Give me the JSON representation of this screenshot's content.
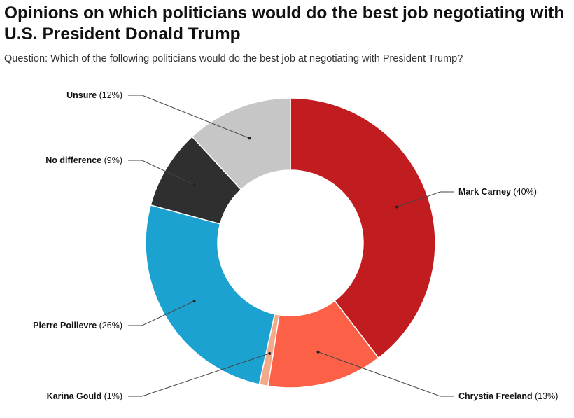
{
  "title": "Opinions on which politicians would do the best job negotiating with U.S. President Donald Trump",
  "subtitle": "Question: Which of the following politicians would do the best job at negotiating with President Trump?",
  "chart_data": {
    "type": "pie",
    "title": "Opinions on which politicians would do the best job negotiating with U.S. President Donald Trump",
    "legend": "none (leader-line labels)",
    "slices": [
      {
        "label": "Mark Carney",
        "value": 40,
        "value_label": "(40%)",
        "color": "#c11c1f"
      },
      {
        "label": "Chrystia Freeland",
        "value": 13,
        "value_label": "(13%)",
        "color": "#fc6147"
      },
      {
        "label": "Karina Gould",
        "value": 1,
        "value_label": "(1%)",
        "color": "#f5a98b"
      },
      {
        "label": "Pierre Poilievre",
        "value": 26,
        "value_label": "(26%)",
        "color": "#1ba2d1"
      },
      {
        "label": "No difference",
        "value": 9,
        "value_label": "(9%)",
        "color": "#2f2f2f"
      },
      {
        "label": "Unsure",
        "value": 12,
        "value_label": "(12%)",
        "color": "#c6c6c6"
      }
    ]
  }
}
